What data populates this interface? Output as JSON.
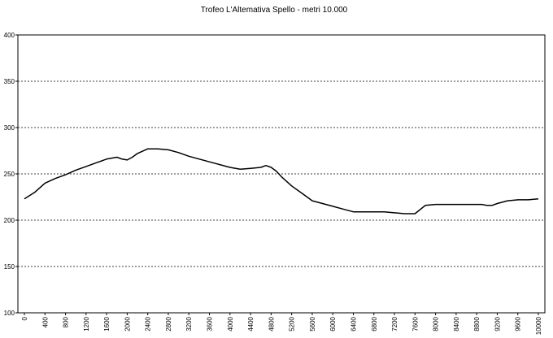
{
  "chart_data": {
    "type": "line",
    "title": "Trofeo L'Altemativa Spello - metri 10.000",
    "xlabel": "",
    "ylabel": "",
    "xlim": [
      0,
      10000
    ],
    "ylim": [
      100,
      400
    ],
    "y_ticks": [
      100,
      150,
      200,
      250,
      300,
      350,
      400
    ],
    "x_ticks": [
      0,
      400,
      800,
      1200,
      1600,
      2000,
      2400,
      2800,
      3200,
      3600,
      4000,
      4400,
      4800,
      5200,
      5600,
      6000,
      6400,
      6800,
      7200,
      7600,
      8000,
      8400,
      8800,
      9200,
      9600,
      10000
    ],
    "grid": "horizontal dotted",
    "legend": "none",
    "line_color": "#000000",
    "series": [
      {
        "x": [
          0,
          200,
          400,
          600,
          800,
          1000,
          1200,
          1400,
          1600,
          1800,
          1900,
          2000,
          2100,
          2200,
          2400,
          2600,
          2800,
          3000,
          3200,
          3600,
          4000,
          4200,
          4400,
          4600,
          4700,
          4800,
          4900,
          5000,
          5200,
          5400,
          5600,
          5800,
          6000,
          6200,
          6400,
          6600,
          6800,
          7000,
          7200,
          7400,
          7600,
          7800,
          8000,
          8400,
          8800,
          8900,
          9000,
          9100,
          9200,
          9400,
          9600,
          9800,
          10000
        ],
        "values": [
          223,
          230,
          240,
          245,
          249,
          254,
          258,
          262,
          266,
          268,
          266,
          265,
          268,
          272,
          277,
          277,
          276,
          273,
          269,
          263,
          257,
          255,
          256,
          257,
          259,
          257,
          253,
          247,
          237,
          229,
          221,
          218,
          215,
          212,
          209,
          209,
          209,
          209,
          208,
          207,
          207,
          216,
          217,
          217,
          217,
          217,
          216,
          216,
          218,
          221,
          222,
          222,
          223
        ]
      }
    ]
  }
}
